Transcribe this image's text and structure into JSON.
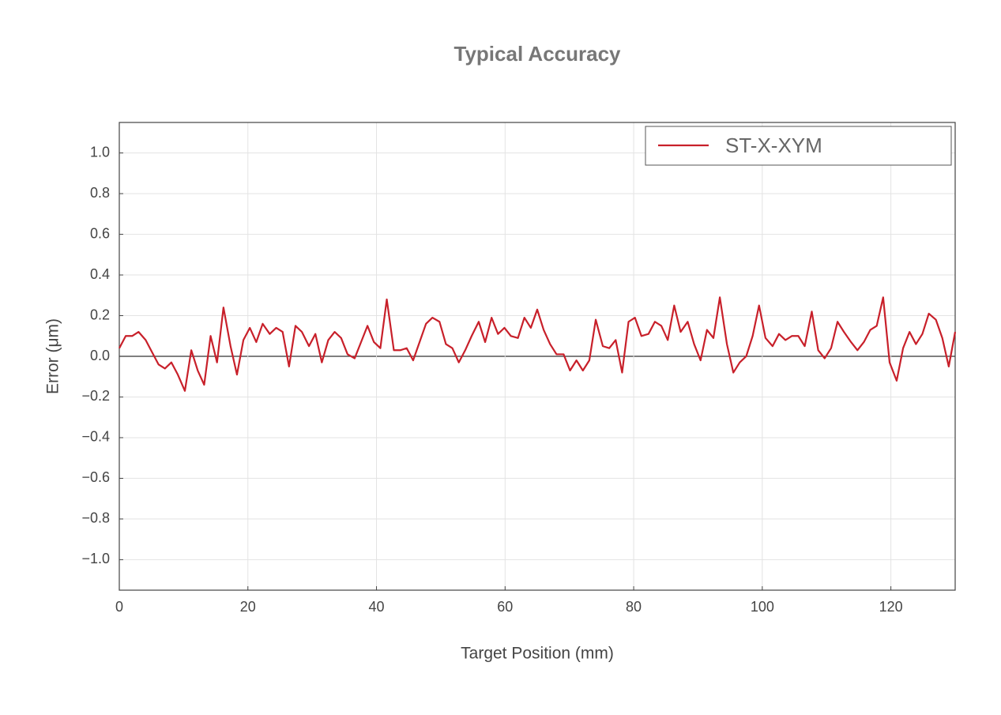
{
  "chart_data": {
    "type": "line",
    "title": "Typical Accuracy",
    "x_label": "Target Position (mm)",
    "y_label": "Error (μm)",
    "x": [
      0,
      1.0,
      2.0,
      3.0,
      4.1,
      5.1,
      6.1,
      7.1,
      8.1,
      9.1,
      10.2,
      11.2,
      12.2,
      13.2,
      14.2,
      15.2,
      16.2,
      17.3,
      18.3,
      19.3,
      20.3,
      21.3,
      22.3,
      23.4,
      24.4,
      25.4,
      26.4,
      27.4,
      28.4,
      29.5,
      30.5,
      31.5,
      32.5,
      33.5,
      34.5,
      35.5,
      36.6,
      37.6,
      38.6,
      39.6,
      40.6,
      41.6,
      42.7,
      43.7,
      44.7,
      45.7,
      46.7,
      47.7,
      48.7,
      49.8,
      50.8,
      51.8,
      52.8,
      53.8,
      54.8,
      55.9,
      56.9,
      57.9,
      58.9,
      59.9,
      60.9,
      62.0,
      63.0,
      64.0,
      65.0,
      66.0,
      67.0,
      68.0,
      69.1,
      70.1,
      71.1,
      72.1,
      73.1,
      74.1,
      75.2,
      76.2,
      77.2,
      78.2,
      79.2,
      80.2,
      81.2,
      82.3,
      83.3,
      84.3,
      85.3,
      86.3,
      87.3,
      88.4,
      89.4,
      90.4,
      91.4,
      92.4,
      93.4,
      94.5,
      95.5,
      96.5,
      97.5,
      98.5,
      99.5,
      100.5,
      101.6,
      102.6,
      103.6,
      104.6,
      105.6,
      106.6,
      107.7,
      108.7,
      109.7,
      110.7,
      111.7,
      112.7,
      113.8,
      114.8,
      115.8,
      116.8,
      117.8,
      118.8,
      119.8,
      120.9,
      121.9,
      122.9,
      123.9,
      124.9,
      125.9,
      127.0,
      128.0,
      129.0,
      130
    ],
    "series": [
      {
        "name": "ST-X-XYM",
        "color": "#c8202a",
        "values": [
          0.04,
          0.1,
          0.1,
          0.12,
          0.08,
          0.02,
          -0.04,
          -0.06,
          -0.03,
          -0.09,
          -0.17,
          0.03,
          -0.07,
          -0.14,
          0.1,
          -0.03,
          0.24,
          0.05,
          -0.09,
          0.08,
          0.14,
          0.07,
          0.16,
          0.11,
          0.14,
          0.12,
          -0.05,
          0.15,
          0.12,
          0.05,
          0.11,
          -0.03,
          0.08,
          0.12,
          0.09,
          0.01,
          -0.01,
          0.07,
          0.15,
          0.07,
          0.04,
          0.28,
          0.03,
          0.03,
          0.04,
          -0.02,
          0.07,
          0.16,
          0.19,
          0.17,
          0.06,
          0.04,
          -0.03,
          0.03,
          0.1,
          0.17,
          0.07,
          0.19,
          0.11,
          0.14,
          0.1,
          0.09,
          0.19,
          0.14,
          0.23,
          0.13,
          0.06,
          0.01,
          0.01,
          -0.07,
          -0.02,
          -0.07,
          -0.02,
          0.18,
          0.05,
          0.04,
          0.08,
          -0.08,
          0.17,
          0.19,
          0.1,
          0.11,
          0.17,
          0.15,
          0.08,
          0.25,
          0.12,
          0.17,
          0.06,
          -0.02,
          0.13,
          0.09,
          0.29,
          0.06,
          -0.08,
          -0.03,
          0.0,
          0.1,
          0.25,
          0.09,
          0.05,
          0.11,
          0.08,
          0.1,
          0.1,
          0.05,
          0.22,
          0.03,
          -0.01,
          0.04,
          0.17,
          0.12,
          0.07,
          0.03,
          0.07,
          0.13,
          0.15,
          0.29,
          -0.03,
          -0.12,
          0.04,
          0.12,
          0.06,
          0.11,
          0.21,
          0.18,
          0.09,
          -0.05,
          0.12
        ]
      }
    ],
    "xlim": [
      0,
      130
    ],
    "xticks": [
      0,
      20,
      40,
      60,
      80,
      100,
      120
    ],
    "ylim": [
      -1.15,
      1.15
    ],
    "yticks": [
      {
        "value": -1.0,
        "label": "−1.0"
      },
      {
        "value": -0.8,
        "label": "−0.8"
      },
      {
        "value": -0.6,
        "label": "−0.6"
      },
      {
        "value": -0.4,
        "label": "−0.4"
      },
      {
        "value": -0.2,
        "label": "−0.2"
      },
      {
        "value": 0,
        "label": "0.0"
      },
      {
        "value": 0.2,
        "label": "0.2"
      },
      {
        "value": 0.4,
        "label": "0.4"
      },
      {
        "value": 0.6,
        "label": "0.6"
      },
      {
        "value": 0.8,
        "label": "0.8"
      },
      {
        "value": 1.0,
        "label": "1.0"
      }
    ],
    "grid": true,
    "legend": "upper right"
  }
}
